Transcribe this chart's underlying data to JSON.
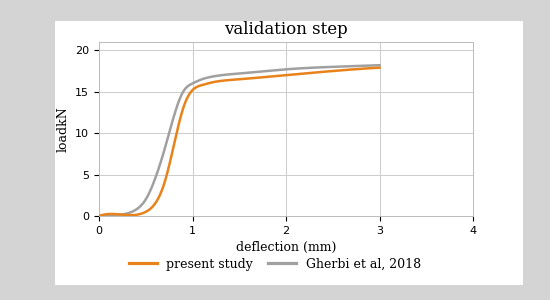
{
  "title": "validation step",
  "xlabel": "deflection (mm)",
  "ylabel": "loadkN",
  "xlim": [
    0,
    4
  ],
  "ylim": [
    0,
    21
  ],
  "xticks": [
    0,
    1,
    2,
    3,
    4
  ],
  "yticks": [
    0,
    5,
    10,
    15,
    20
  ],
  "present_study_x": [
    0.0,
    0.35,
    0.5,
    0.6,
    0.7,
    0.8,
    0.9,
    1.0,
    1.1,
    1.2,
    1.5,
    1.8,
    2.0,
    2.5,
    3.0
  ],
  "present_study_y": [
    0.0,
    0.1,
    0.5,
    1.5,
    4.0,
    8.5,
    13.0,
    15.2,
    15.8,
    16.1,
    16.5,
    16.8,
    17.0,
    17.5,
    17.9
  ],
  "gherbi_x": [
    0.0,
    0.25,
    0.4,
    0.5,
    0.6,
    0.7,
    0.8,
    0.9,
    1.0,
    1.1,
    1.2,
    1.5,
    1.8,
    2.0,
    2.5,
    3.0
  ],
  "gherbi_y": [
    0.0,
    0.2,
    0.8,
    2.0,
    4.5,
    8.0,
    12.0,
    15.0,
    16.0,
    16.5,
    16.8,
    17.2,
    17.5,
    17.7,
    18.0,
    18.2
  ],
  "present_color": "#E8821A",
  "gherbi_color": "#A0A0A0",
  "line_width": 1.8,
  "title_fontsize": 12,
  "label_fontsize": 9,
  "tick_fontsize": 8,
  "legend_fontsize": 9,
  "outer_bg_color": "#d4d4d4",
  "inner_bg_color": "#ffffff",
  "plot_bg_color": "#ffffff",
  "grid_color": "#cccccc"
}
